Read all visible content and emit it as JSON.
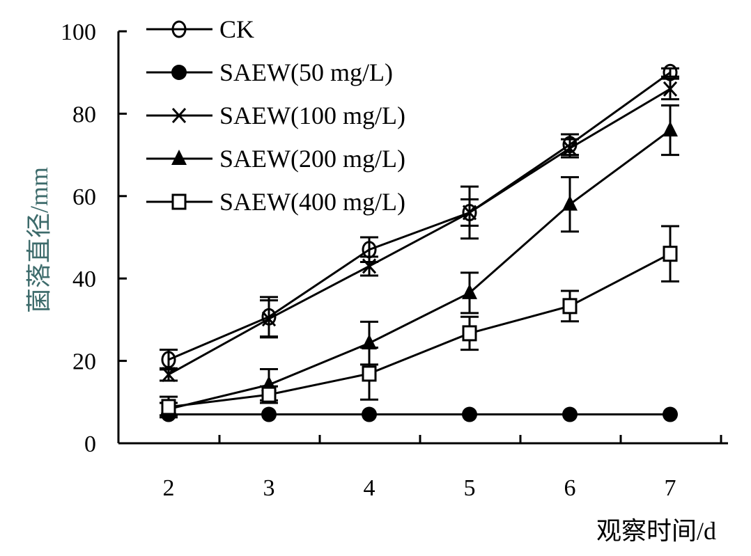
{
  "chart_data": {
    "type": "line",
    "title": "",
    "xlabel": "观察时间/d",
    "ylabel": "菌落直径/mm",
    "x": [
      2,
      3,
      4,
      5,
      6,
      7
    ],
    "xticklabels": [
      "2",
      "3",
      "4",
      "5",
      "6",
      "7"
    ],
    "ylim": [
      0,
      100
    ],
    "yticks": [
      0,
      20,
      40,
      60,
      80,
      100
    ],
    "yticklabels": [
      "0",
      "20",
      "40",
      "60",
      "80",
      "100"
    ],
    "grid": false,
    "legend_position": "top-left",
    "colors": {
      "line": "#000000",
      "ylabel": "#3d6b6b"
    },
    "series": [
      {
        "name": "CK",
        "marker": "open-circle",
        "values": [
          20.3,
          30.7,
          47,
          56,
          72.5,
          90
        ],
        "errors": [
          2.4,
          4.8,
          3,
          3.2,
          2.5,
          1
        ]
      },
      {
        "name": "SAEW(50 mg/L)",
        "marker": "filled-circle",
        "values": [
          7,
          7,
          7,
          7,
          7,
          7
        ],
        "errors": [
          0,
          0,
          0,
          0,
          0,
          0
        ]
      },
      {
        "name": "SAEW(100 mg/L)",
        "marker": "x",
        "values": [
          16.7,
          30.2,
          43,
          56,
          71.6,
          86
        ],
        "errors": [
          1.5,
          4.5,
          2.3,
          6.3,
          2.2,
          2.5
        ]
      },
      {
        "name": "SAEW(200 mg/L)",
        "marker": "filled-triangle",
        "values": [
          8.3,
          14.2,
          24.3,
          36.5,
          58,
          76
        ],
        "errors": [
          1.5,
          3.8,
          5.2,
          4.9,
          6.6,
          6
        ]
      },
      {
        "name": "SAEW(400 mg/L)",
        "marker": "open-square",
        "values": [
          8.8,
          11.8,
          16.9,
          26.7,
          33.3,
          46
        ],
        "errors": [
          2.5,
          2,
          6.3,
          4,
          3.7,
          6.7
        ]
      }
    ]
  }
}
